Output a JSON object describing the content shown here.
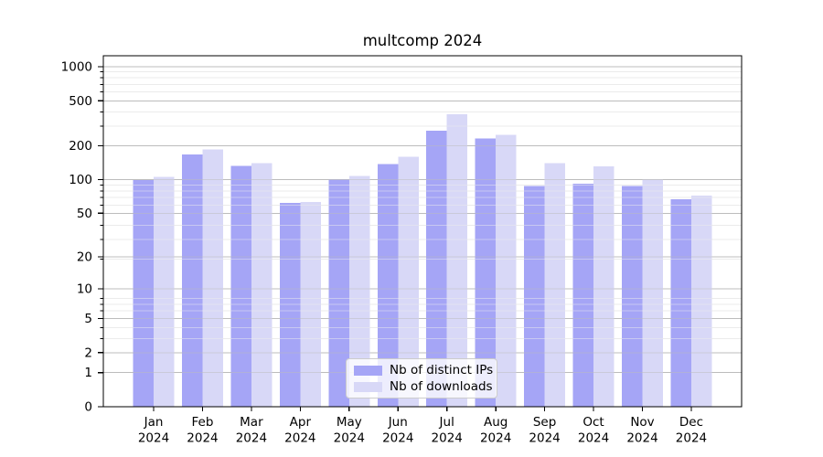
{
  "figure": {
    "background": "#ffffff"
  },
  "chart_data": {
    "type": "bar",
    "title": "multcomp 2024",
    "categories": [
      "Jan",
      "Feb",
      "Mar",
      "Apr",
      "May",
      "Jun",
      "Jul",
      "Aug",
      "Sep",
      "Oct",
      "Nov",
      "Dec"
    ],
    "category_year": "2024",
    "series": [
      {
        "name": "Nb of distinct IPs",
        "color": "#a5a5f6",
        "values": [
          99,
          168,
          133,
          62,
          100,
          138,
          273,
          231,
          88,
          92,
          88,
          67
        ]
      },
      {
        "name": "Nb of downloads",
        "color": "#d8d8f7",
        "values": [
          106,
          185,
          140,
          63,
          108,
          159,
          380,
          249,
          140,
          131,
          100,
          72
        ]
      }
    ],
    "xlabel": "",
    "ylabel": "",
    "y_scale": "log1p",
    "y_ticks": [
      0,
      1,
      2,
      5,
      10,
      20,
      50,
      100,
      200,
      500,
      1000
    ],
    "ylim": [
      0,
      1250
    ],
    "grid": true,
    "grid_major_color": "#bcbcbc",
    "grid_minor_color": "#ebebeb",
    "axis_color": "#000000",
    "legend": {
      "position": "lower center"
    }
  }
}
